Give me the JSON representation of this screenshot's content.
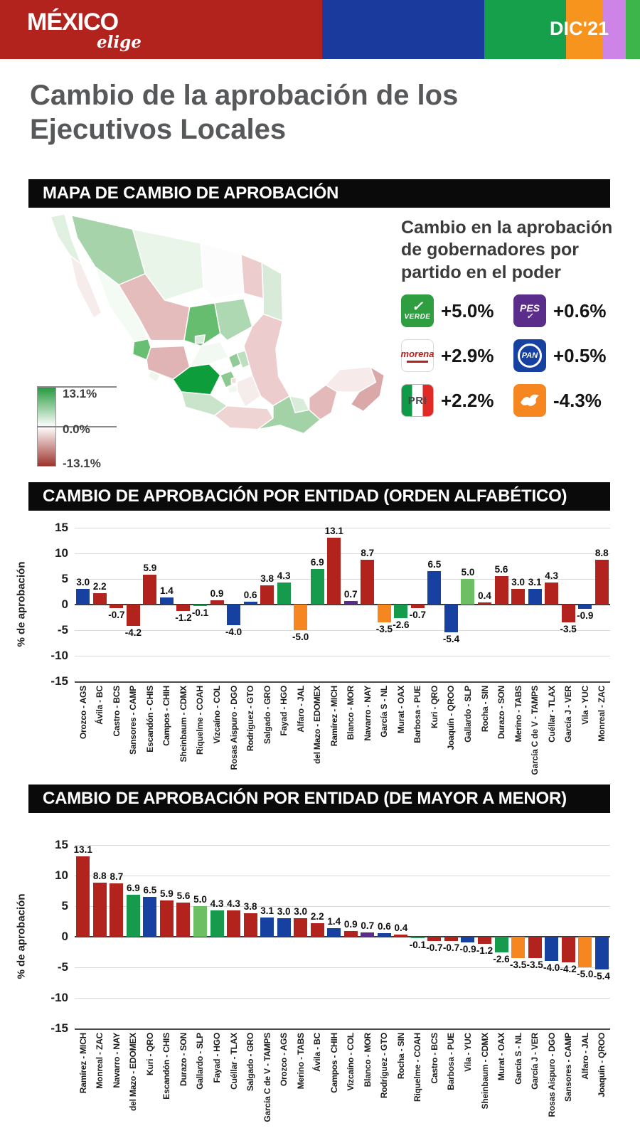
{
  "header": {
    "brand": {
      "main": "MÉXICO",
      "sub": "elige"
    },
    "edition": "DIC'21",
    "stripe_colors": [
      "#B2231E",
      "#1A3A9E",
      "#17A04C",
      "#F7941D",
      "#CE84E6",
      "#3DB54B"
    ]
  },
  "page_title": "Cambio de la aprobación de los Ejecutivos Locales",
  "map_section": {
    "heading": "MAPA DE CAMBIO DE APROBACIÓN",
    "legend": {
      "max": "13.1%",
      "mid": "0.0%",
      "min": "-13.1%"
    },
    "panel_title": "Cambio en la aprobación de gobernadores por partido en el poder",
    "parties": [
      {
        "id": "verde",
        "label": "VERDE",
        "value": "+5.0%"
      },
      {
        "id": "pes",
        "label": "PES",
        "value": "+0.6%"
      },
      {
        "id": "morena",
        "label": "morena",
        "value": "+2.9%"
      },
      {
        "id": "pan",
        "label": "PAN",
        "value": "+0.5%"
      },
      {
        "id": "pri",
        "label": "PRI",
        "value": "+2.2%"
      },
      {
        "id": "mc",
        "label": "MC",
        "value": "-4.3%"
      }
    ],
    "states": [
      {
        "name": "baja-california",
        "color": "#e0f0e1"
      },
      {
        "name": "baja-california-sur",
        "color": "#f7ecec"
      },
      {
        "name": "sonora",
        "color": "#a6d3aa"
      },
      {
        "name": "chihuahua",
        "color": "#eaf5ea"
      },
      {
        "name": "coahuila",
        "color": "#fbfcfb"
      },
      {
        "name": "nuevo-leon",
        "color": "#eccccc"
      },
      {
        "name": "tamaulipas",
        "color": "#d7ebd8"
      },
      {
        "name": "sinaloa",
        "color": "#f4faf4"
      },
      {
        "name": "durango",
        "color": "#e5bcbc"
      },
      {
        "name": "zacatecas",
        "color": "#66bd70"
      },
      {
        "name": "san-luis-potosi",
        "color": "#aed8b1"
      },
      {
        "name": "nayarit",
        "color": "#68be72"
      },
      {
        "name": "jalisco",
        "color": "#e0b4b4"
      },
      {
        "name": "aguascalientes",
        "color": "#d8ecd9"
      },
      {
        "name": "guanajuato",
        "color": "#f2f9f2"
      },
      {
        "name": "queretaro",
        "color": "#93cb98"
      },
      {
        "name": "hidalgo",
        "color": "#bcdfbf"
      },
      {
        "name": "michoacan",
        "color": "#0d9e3b"
      },
      {
        "name": "colima",
        "color": "#eef7ee"
      },
      {
        "name": "edomex",
        "color": "#8cc892"
      },
      {
        "name": "cdmx",
        "color": "#f3dede"
      },
      {
        "name": "morelos",
        "color": "#f0f8f0"
      },
      {
        "name": "tlaxcala",
        "color": "#bcdfbf"
      },
      {
        "name": "puebla",
        "color": "#f7ecec"
      },
      {
        "name": "guerrero",
        "color": "#c9e4cb"
      },
      {
        "name": "oaxaca",
        "color": "#efd4d4"
      },
      {
        "name": "veracruz",
        "color": "#eccccc"
      },
      {
        "name": "tabasco",
        "color": "#d8ecd9"
      },
      {
        "name": "chiapas",
        "color": "#a2d2a6"
      },
      {
        "name": "campeche",
        "color": "#e3b9b9"
      },
      {
        "name": "yucatan",
        "color": "#f6eaea"
      },
      {
        "name": "quintana-roo",
        "color": "#daa8a8"
      }
    ]
  },
  "party_colors": {
    "morena": "#B2231E",
    "pan": "#1741A0",
    "pri": "#169B4D",
    "pvem": "#6CC063",
    "mc": "#F6861F",
    "pes": "#5A2D8A"
  },
  "chart_data": [
    {
      "type": "bar",
      "title": "CAMBIO DE APROBACIÓN POR ENTIDAD (ORDEN ALFABÉTICO)",
      "xlabel": "",
      "ylabel": "% de aprobación",
      "ylim": [
        -15,
        15
      ],
      "yticks": [
        15,
        10,
        5,
        0,
        -5,
        -10,
        -15
      ],
      "grid": true,
      "categories": [
        "Orozco - AGS",
        "Ávila - BC",
        "Castro - BCS",
        "Sansores - CAMP",
        "Escandón - CHIS",
        "Campos - CHIH",
        "Sheinbaum - CDMX",
        "Riquelme - COAH",
        "Vizcaíno - COL",
        "Rosas Aispuro - DGO",
        "Rodríguez - GTO",
        "Salgado - GRO",
        "Fayad - HGO",
        "Alfaro - JAL",
        "del Mazo - EDOMEX",
        "Ramírez - MICH",
        "Blanco - MOR",
        "Navarro - NAY",
        "García S - NL",
        "Murat - OAX",
        "Barbosa - PUE",
        "Kuri - QRO",
        "Joaquín - QROO",
        "Gallardo - SLP",
        "Rocha - SIN",
        "Durazo - SON",
        "Merino - TABS",
        "García C de V - TAMPS",
        "Cuéllar - TLAX",
        "García J - VER",
        "Vila - YUC",
        "Monreal - ZAC"
      ],
      "values": [
        3.0,
        2.2,
        -0.7,
        -4.2,
        5.9,
        1.4,
        -1.2,
        -0.1,
        0.9,
        -4.0,
        0.6,
        3.8,
        4.3,
        -5.0,
        6.9,
        13.1,
        0.7,
        8.7,
        -3.5,
        -2.6,
        -0.7,
        6.5,
        -5.4,
        5.0,
        0.4,
        5.6,
        3.0,
        3.1,
        4.3,
        -3.5,
        -0.9,
        8.8
      ],
      "parties": [
        "pan",
        "morena",
        "morena",
        "morena",
        "morena",
        "pan",
        "morena",
        "pri",
        "morena",
        "pan",
        "pan",
        "morena",
        "pri",
        "mc",
        "pri",
        "morena",
        "pes",
        "morena",
        "mc",
        "pri",
        "morena",
        "pan",
        "pan",
        "pvem",
        "morena",
        "morena",
        "morena",
        "pan",
        "morena",
        "morena",
        "pan",
        "morena"
      ]
    },
    {
      "type": "bar",
      "title": "CAMBIO DE APROBACIÓN POR ENTIDAD (DE MAYOR A MENOR)",
      "xlabel": "",
      "ylabel": "% de aprobación",
      "ylim": [
        -15,
        15
      ],
      "yticks": [
        15,
        10,
        5,
        0,
        -5,
        -10,
        -15
      ],
      "grid": true,
      "categories": [
        "Ramírez - MICH",
        "Monreal - ZAC",
        "Navarro - NAY",
        "del Mazo - EDOMEX",
        "Kuri - QRO",
        "Escandón - CHIS",
        "Durazo - SON",
        "Gallardo - SLP",
        "Fayad - HGO",
        "Cuéllar - TLAX",
        "Salgado - GRO",
        "García C de V - TAMPS",
        "Orozco - AGS",
        "Merino - TABS",
        "Ávila - BC",
        "Campos - CHIH",
        "Vizcaíno - COL",
        "Blanco - MOR",
        "Rodríguez - GTO",
        "Rocha - SIN",
        "Riquelme - COAH",
        "Castro - BCS",
        "Barbosa - PUE",
        "Vila - YUC",
        "Sheinbaum - CDMX",
        "Murat - OAX",
        "García S - NL",
        "García J - VER",
        "Rosas Aispuro - DGO",
        "Sansores - CAMP",
        "Alfaro - JAL",
        "Joaquín - QROO"
      ],
      "values": [
        13.1,
        8.8,
        8.7,
        6.9,
        6.5,
        5.9,
        5.6,
        5.0,
        4.3,
        4.3,
        3.8,
        3.1,
        3.0,
        3.0,
        2.2,
        1.4,
        0.9,
        0.7,
        0.6,
        0.4,
        -0.1,
        -0.7,
        -0.7,
        -0.9,
        -1.2,
        -2.6,
        -3.5,
        -3.5,
        -4.0,
        -4.2,
        -5.0,
        -5.4
      ],
      "parties": [
        "morena",
        "morena",
        "morena",
        "pri",
        "pan",
        "morena",
        "morena",
        "pvem",
        "pri",
        "morena",
        "morena",
        "pan",
        "pan",
        "morena",
        "morena",
        "pan",
        "morena",
        "pes",
        "pan",
        "morena",
        "pri",
        "morena",
        "morena",
        "pan",
        "morena",
        "pri",
        "mc",
        "morena",
        "pan",
        "morena",
        "mc",
        "pan"
      ]
    }
  ]
}
